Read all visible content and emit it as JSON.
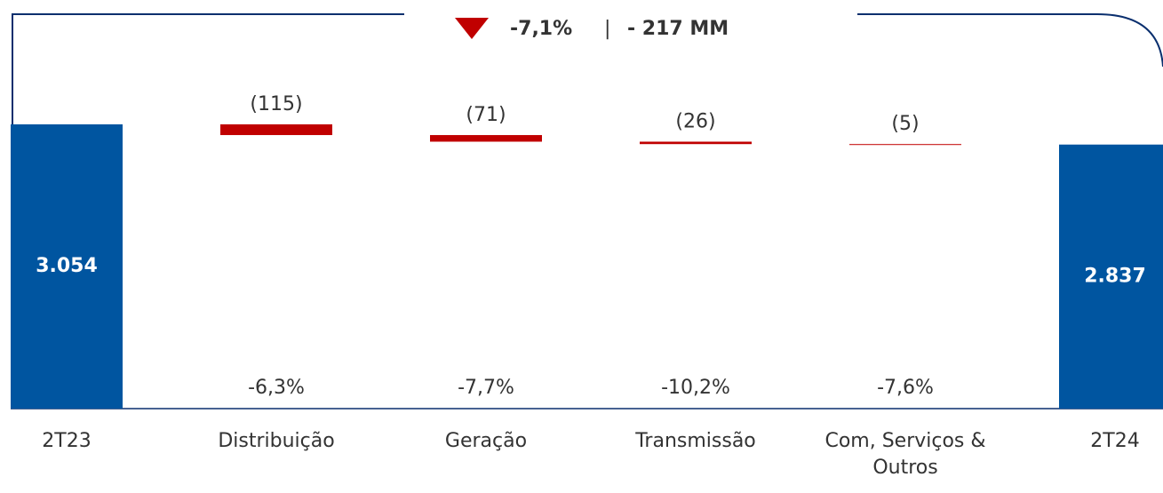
{
  "header": {
    "change": "-7,1%",
    "separator": "|",
    "amount": "- 217 MM"
  },
  "chart_data": {
    "type": "waterfall",
    "categories": [
      "2T23",
      "Distribuição",
      "Geração",
      "Transmissão",
      "Com, Serviços & Outros",
      "2T24"
    ],
    "measures": [
      "absolute",
      "relative",
      "relative",
      "relative",
      "relative",
      "total"
    ],
    "values": [
      3054,
      -115,
      -71,
      -26,
      -5,
      2837
    ],
    "value_labels": [
      "3.054",
      "(115)",
      "(71)",
      "(26)",
      "(5)",
      "2.837"
    ],
    "annotations": [
      null,
      "-6,3%",
      "-7,7%",
      "-10,2%",
      "-7,6%",
      null
    ],
    "total_color": "#0055a0",
    "decrease_color": "#c00000",
    "ylim": [
      0,
      3054
    ]
  }
}
